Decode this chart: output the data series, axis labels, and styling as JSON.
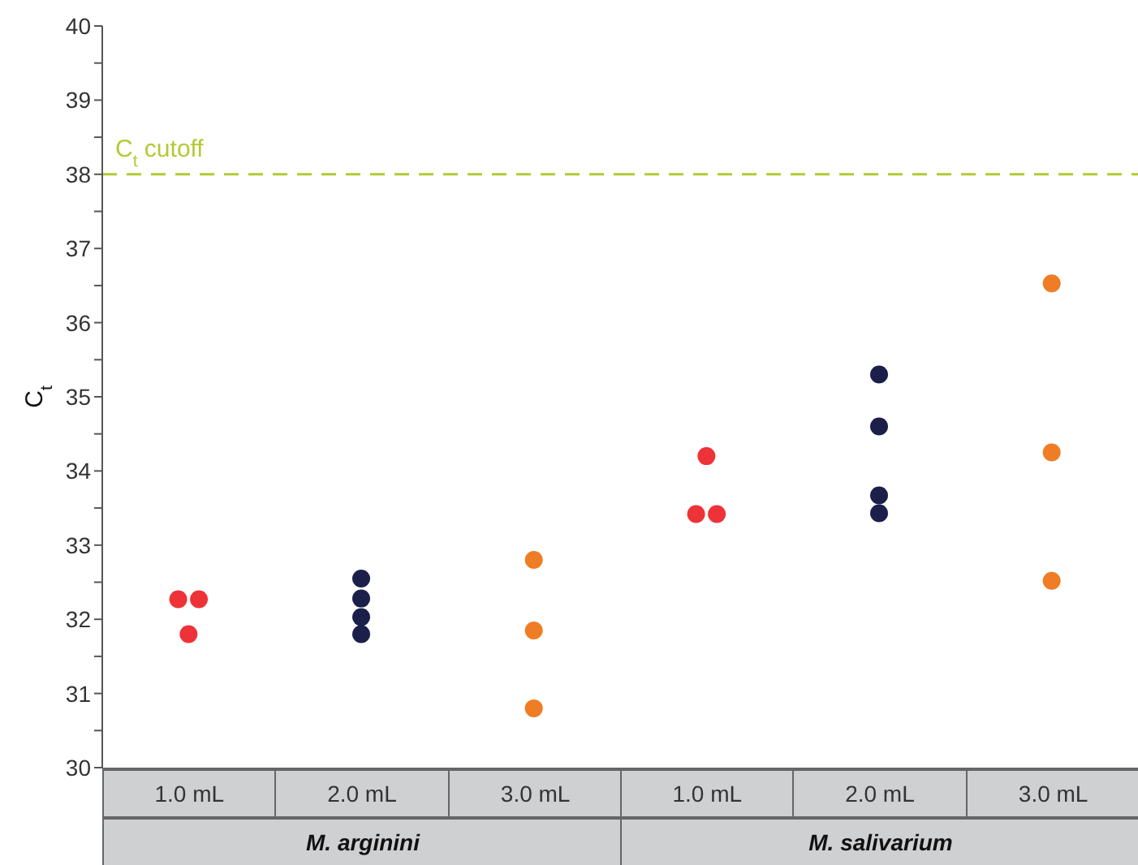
{
  "chart_data": [
    {
      "type": "scatter",
      "ylabel": "C$_{t}$",
      "xlabel": "M. arginini",
      "categories": [
        "1.0 mL",
        "2.0 mL",
        "3.0 mL"
      ],
      "series": [
        {
          "values": [
            32.27,
            32.55,
            32.8
          ],
          "colors": [
            "#ee3338",
            "#1c1f4a",
            "#ee7d26"
          ]
        },
        {
          "values": [
            32.27,
            32.28,
            31.85
          ],
          "colors": [
            "#ee3338",
            "#1c1f4a",
            "#ee7d26"
          ]
        },
        {
          "values": [
            31.8,
            32.03,
            30.8
          ],
          "colors": [
            "#ee3338",
            "#1c1f4a",
            "#ee7d26"
          ]
        },
        {
          "values": [
            null,
            31.8,
            null
          ],
          "colors": [
            null,
            "#1c1f4a",
            null
          ]
        }
      ],
      "ylim": [
        30,
        40
      ],
      "yticks": [
        30,
        {
          "value": 30.5,
          "label": null
        },
        31,
        {
          "value": 31.5,
          "label": null
        },
        32,
        {
          "value": 32.5,
          "label": null
        },
        33,
        {
          "value": 33.5,
          "label": null
        },
        34,
        {
          "value": 34.5,
          "label": null
        },
        35,
        {
          "value": 35.5,
          "label": null
        },
        36,
        {
          "value": 36.5,
          "label": null
        },
        37,
        {
          "value": 37.5,
          "label": null
        },
        38,
        {
          "value": 38.5,
          "label": null
        },
        39,
        {
          "value": 39.5,
          "label": null
        },
        40
      ],
      "ref_lines": [
        {
          "axis": "y",
          "value": 38,
          "label": "C$_{t}$ cutoff",
          "color": "#b5c934",
          "line_style": "dashed"
        }
      ],
      "marker": "circle"
    },
    {
      "type": "scatter",
      "xlabel": "M. salivarium",
      "categories": [
        "1.0 mL",
        "2.0 mL",
        "3.0 mL"
      ],
      "series": [
        {
          "values": [
            34.2,
            35.3,
            36.53
          ],
          "colors": [
            "#ee3338",
            "#1c1f4a",
            "#ee7d26"
          ]
        },
        {
          "values": [
            33.42,
            34.6,
            34.25
          ],
          "colors": [
            "#ee3338",
            "#1c1f4a",
            "#ee7d26"
          ]
        },
        {
          "values": [
            33.42,
            33.67,
            32.52
          ],
          "colors": [
            "#ee3338",
            "#1c1f4a",
            "#ee7d26"
          ]
        },
        {
          "values": [
            null,
            33.43,
            null
          ],
          "colors": [
            null,
            "#1c1f4a",
            null
          ]
        }
      ],
      "ylim": [
        30,
        40
      ],
      "tick_labels": "x",
      "ref_lines": [
        {
          "axis": "y",
          "value": 38,
          "color": "#b5c934",
          "line_style": "dashed"
        }
      ],
      "marker": "circle"
    }
  ]
}
